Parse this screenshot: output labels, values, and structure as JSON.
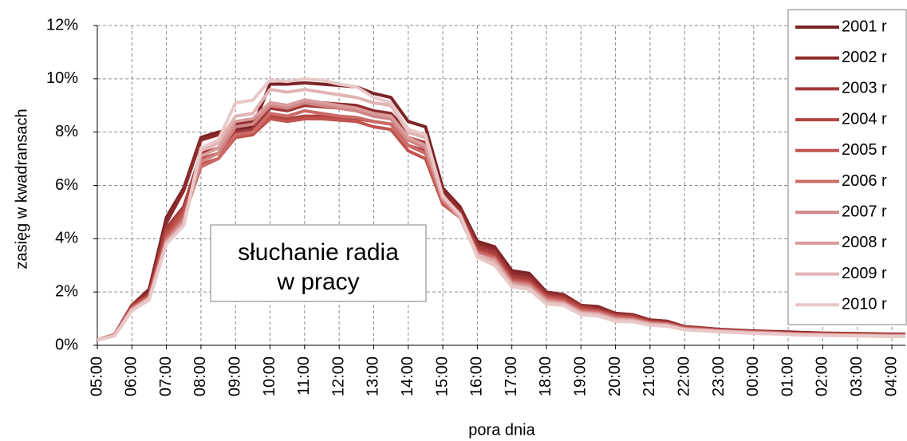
{
  "chart_data": {
    "type": "line",
    "annotation": [
      "słuchanie radia",
      "w pracy"
    ],
    "x_label": "pora dnia",
    "y_label": "zasięg w kwadransach",
    "categories": [
      "05:00",
      null,
      "06:00",
      null,
      "07:00",
      null,
      "08:00",
      null,
      "09:00",
      null,
      "10:00",
      null,
      "11:00",
      null,
      "12:00",
      null,
      "13:00",
      null,
      "14:00",
      null,
      "15:00",
      null,
      "16:00",
      null,
      "17:00",
      null,
      "18:00",
      null,
      "19:00",
      null,
      "20:00",
      null,
      "21:00",
      null,
      "22:00",
      null,
      "23:00",
      null,
      "00:00",
      null,
      "01:00",
      null,
      "02:00",
      null,
      "03:00",
      null,
      "04:00",
      null
    ],
    "ylim": [
      0,
      12
    ],
    "yticks": [
      {
        "value": 0,
        "label": "0%"
      },
      {
        "value": 2,
        "label": "2%"
      },
      {
        "value": 4,
        "label": "4%"
      },
      {
        "value": 6,
        "label": "6%"
      },
      {
        "value": 8,
        "label": "8%"
      },
      {
        "value": 10,
        "label": "10%"
      },
      {
        "value": 12,
        "label": "12%"
      }
    ],
    "grid": true,
    "legend": "top-right",
    "series": [
      {
        "name": "2001 r",
        "color": "#7b2426",
        "values": [
          0.2,
          0.4,
          1.5,
          2.1,
          4.8,
          5.9,
          7.8,
          8.0,
          8.1,
          8.2,
          9.8,
          9.8,
          9.85,
          9.8,
          9.75,
          9.7,
          9.45,
          9.3,
          8.4,
          8.2,
          5.9,
          5.2,
          3.9,
          3.7,
          2.8,
          2.7,
          2.0,
          1.9,
          1.5,
          1.45,
          1.2,
          1.15,
          0.95,
          0.9,
          0.7,
          0.65,
          0.6,
          0.57,
          0.54,
          0.52,
          0.5,
          0.48,
          0.46,
          0.45,
          0.44,
          0.43,
          0.42,
          0.42
        ]
      },
      {
        "name": "2002 r",
        "color": "#8e2b2c",
        "values": [
          0.2,
          0.4,
          1.5,
          2.0,
          4.6,
          5.8,
          7.7,
          7.9,
          8.3,
          8.4,
          9.1,
          9.0,
          9.2,
          9.1,
          9.05,
          9.0,
          8.8,
          8.7,
          8.0,
          7.8,
          5.8,
          5.1,
          3.8,
          3.6,
          2.7,
          2.6,
          2.0,
          1.9,
          1.5,
          1.4,
          1.2,
          1.15,
          0.95,
          0.9,
          0.7,
          0.65,
          0.6,
          0.56,
          0.53,
          0.5,
          0.48,
          0.46,
          0.45,
          0.44,
          0.43,
          0.42,
          0.41,
          0.41
        ]
      },
      {
        "name": "2003 r",
        "color": "#a2393a",
        "values": [
          0.2,
          0.4,
          1.5,
          1.9,
          4.4,
          5.2,
          7.2,
          7.4,
          8.0,
          8.1,
          8.9,
          8.8,
          9.0,
          8.95,
          8.9,
          8.8,
          8.6,
          8.5,
          7.8,
          7.6,
          5.6,
          5.0,
          3.7,
          3.5,
          2.6,
          2.5,
          1.9,
          1.8,
          1.45,
          1.35,
          1.15,
          1.1,
          0.9,
          0.85,
          0.68,
          0.63,
          0.58,
          0.55,
          0.52,
          0.5,
          0.47,
          0.45,
          0.44,
          0.43,
          0.42,
          0.41,
          0.4,
          0.4
        ]
      },
      {
        "name": "2004 r",
        "color": "#b34541",
        "values": [
          0.2,
          0.4,
          1.45,
          1.9,
          4.3,
          5.1,
          7.0,
          7.2,
          7.9,
          8.0,
          8.6,
          8.5,
          8.6,
          8.6,
          8.55,
          8.5,
          8.4,
          8.3,
          7.5,
          7.3,
          5.5,
          4.9,
          3.6,
          3.4,
          2.5,
          2.4,
          1.85,
          1.75,
          1.4,
          1.3,
          1.1,
          1.05,
          0.88,
          0.83,
          0.66,
          0.62,
          0.57,
          0.54,
          0.51,
          0.49,
          0.46,
          0.44,
          0.43,
          0.42,
          0.41,
          0.4,
          0.39,
          0.39
        ]
      },
      {
        "name": "2005 r",
        "color": "#c2534e",
        "values": [
          0.2,
          0.4,
          1.4,
          1.85,
          4.1,
          5.0,
          6.8,
          7.0,
          7.8,
          7.9,
          8.5,
          8.4,
          8.5,
          8.5,
          8.45,
          8.4,
          8.2,
          8.1,
          7.3,
          7.0,
          5.3,
          4.8,
          3.5,
          3.3,
          2.45,
          2.35,
          1.8,
          1.7,
          1.35,
          1.28,
          1.08,
          1.03,
          0.86,
          0.82,
          0.65,
          0.61,
          0.56,
          0.53,
          0.5,
          0.48,
          0.45,
          0.43,
          0.42,
          0.41,
          0.4,
          0.39,
          0.38,
          0.38
        ]
      },
      {
        "name": "2006 r",
        "color": "#cb6a66",
        "values": [
          0.2,
          0.4,
          1.4,
          1.8,
          4.0,
          4.8,
          6.7,
          7.0,
          7.9,
          8.0,
          8.7,
          8.6,
          8.8,
          8.7,
          8.6,
          8.55,
          8.4,
          8.3,
          7.5,
          7.2,
          5.4,
          4.8,
          3.5,
          3.3,
          2.4,
          2.3,
          1.75,
          1.65,
          1.3,
          1.25,
          1.05,
          1.0,
          0.84,
          0.8,
          0.63,
          0.6,
          0.55,
          0.52,
          0.49,
          0.47,
          0.44,
          0.42,
          0.41,
          0.4,
          0.39,
          0.38,
          0.37,
          0.37
        ]
      },
      {
        "name": "2007 r",
        "color": "#d18585",
        "values": [
          0.2,
          0.38,
          1.35,
          1.8,
          3.9,
          4.7,
          6.9,
          7.2,
          8.2,
          8.3,
          9.0,
          8.9,
          9.1,
          9.0,
          8.9,
          8.8,
          8.6,
          8.5,
          7.7,
          7.4,
          5.5,
          4.8,
          3.4,
          3.2,
          2.35,
          2.25,
          1.7,
          1.6,
          1.25,
          1.2,
          1.0,
          0.96,
          0.82,
          0.78,
          0.62,
          0.58,
          0.54,
          0.51,
          0.48,
          0.46,
          0.43,
          0.41,
          0.4,
          0.39,
          0.38,
          0.37,
          0.36,
          0.36
        ]
      },
      {
        "name": "2008 r",
        "color": "#d99b9b",
        "values": [
          0.2,
          0.37,
          1.35,
          1.75,
          3.9,
          4.6,
          7.1,
          7.4,
          8.4,
          8.5,
          9.1,
          9.0,
          9.2,
          9.1,
          9.0,
          8.9,
          8.7,
          8.6,
          7.8,
          7.5,
          5.5,
          4.8,
          3.4,
          3.2,
          2.3,
          2.2,
          1.65,
          1.58,
          1.22,
          1.17,
          0.98,
          0.94,
          0.8,
          0.76,
          0.6,
          0.57,
          0.53,
          0.5,
          0.47,
          0.45,
          0.42,
          0.4,
          0.39,
          0.38,
          0.37,
          0.36,
          0.35,
          0.35
        ]
      },
      {
        "name": "2009 r",
        "color": "#e1b3b3",
        "values": [
          0.2,
          0.36,
          1.3,
          1.75,
          3.8,
          4.5,
          7.3,
          7.6,
          8.6,
          8.7,
          9.6,
          9.5,
          9.6,
          9.5,
          9.4,
          9.3,
          9.1,
          9.0,
          8.0,
          7.8,
          5.6,
          4.9,
          3.4,
          3.1,
          2.25,
          2.15,
          1.6,
          1.55,
          1.2,
          1.15,
          0.95,
          0.92,
          0.78,
          0.74,
          0.59,
          0.56,
          0.52,
          0.49,
          0.46,
          0.44,
          0.41,
          0.39,
          0.38,
          0.37,
          0.36,
          0.35,
          0.34,
          0.34
        ]
      },
      {
        "name": "2010 r",
        "color": "#e9c8c8",
        "values": [
          0.2,
          0.35,
          1.3,
          1.7,
          3.8,
          4.5,
          7.4,
          7.7,
          9.1,
          9.2,
          9.95,
          9.9,
          10.0,
          9.95,
          9.8,
          9.7,
          9.3,
          9.1,
          8.1,
          7.9,
          5.6,
          4.9,
          3.3,
          3.0,
          2.2,
          2.1,
          1.55,
          1.5,
          1.15,
          1.1,
          0.9,
          0.88,
          0.75,
          0.72,
          0.58,
          0.55,
          0.5,
          0.48,
          0.45,
          0.43,
          0.4,
          0.38,
          0.37,
          0.36,
          0.35,
          0.34,
          0.33,
          0.33
        ]
      }
    ]
  }
}
